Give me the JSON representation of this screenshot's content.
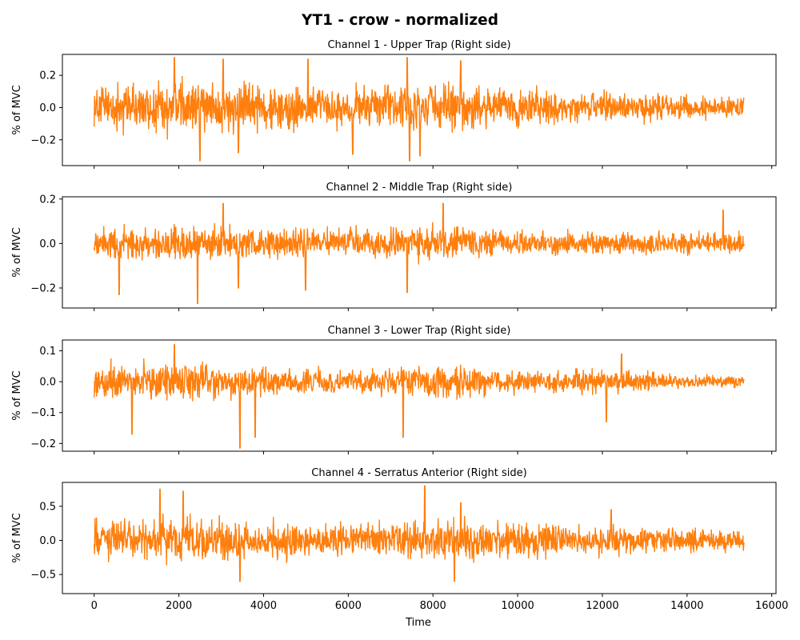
{
  "figure": {
    "suptitle": "YT1 - crow - normalized",
    "xlabel": "Time"
  },
  "colors": {
    "signal": "#ff7f0e"
  },
  "chart_data": [
    {
      "type": "line",
      "title": "Channel 1 - Upper Trap (Right side)",
      "ylabel": "% of MVC",
      "xlim": [
        -750,
        16100
      ],
      "ylim": [
        -0.36,
        0.33
      ],
      "x_ticks": [
        0,
        2000,
        4000,
        6000,
        8000,
        10000,
        12000,
        14000,
        16000
      ],
      "y_ticks": [
        -0.2,
        0.0,
        0.2
      ],
      "y_tick_labels": [
        "−0.2",
        "0.0",
        "0.2"
      ],
      "show_x_tick_labels": false,
      "x_range": [
        0,
        15350
      ],
      "envelope": {
        "x": [
          0,
          2000,
          4000,
          6000,
          8000,
          10000,
          12000,
          14000,
          15350
        ],
        "amplitude": [
          0.17,
          0.22,
          0.19,
          0.17,
          0.19,
          0.15,
          0.13,
          0.09,
          0.08
        ]
      },
      "spikes": [
        [
          1900,
          0.31
        ],
        [
          2500,
          -0.33
        ],
        [
          3050,
          0.3
        ],
        [
          3400,
          -0.28
        ],
        [
          5050,
          0.3
        ],
        [
          6100,
          -0.29
        ],
        [
          7400,
          0.31
        ],
        [
          7450,
          -0.33
        ],
        [
          7700,
          -0.3
        ],
        [
          8650,
          0.29
        ],
        [
          15350,
          0.06
        ]
      ]
    },
    {
      "type": "line",
      "title": "Channel 2 - Middle Trap (Right side)",
      "ylabel": "% of MVC",
      "xlim": [
        -750,
        16100
      ],
      "ylim": [
        -0.29,
        0.21
      ],
      "x_ticks": [
        0,
        2000,
        4000,
        6000,
        8000,
        10000,
        12000,
        14000,
        16000
      ],
      "y_ticks": [
        -0.2,
        0.0,
        0.2
      ],
      "y_tick_labels": [
        "−0.2",
        "0.0",
        "0.2"
      ],
      "show_x_tick_labels": false,
      "x_range": [
        0,
        15350
      ],
      "envelope": {
        "x": [
          0,
          2000,
          4000,
          6000,
          8000,
          10000,
          12000,
          14000,
          15350
        ],
        "amplitude": [
          0.09,
          0.1,
          0.09,
          0.08,
          0.1,
          0.07,
          0.07,
          0.06,
          0.06
        ]
      },
      "spikes": [
        [
          600,
          -0.23
        ],
        [
          2450,
          -0.27
        ],
        [
          3050,
          0.18
        ],
        [
          3400,
          -0.2
        ],
        [
          5000,
          -0.21
        ],
        [
          7400,
          -0.22
        ],
        [
          8250,
          0.18
        ],
        [
          14850,
          0.15
        ]
      ]
    },
    {
      "type": "line",
      "title": "Channel 3 - Lower Trap (Right side)",
      "ylabel": "% of MVC",
      "xlim": [
        -750,
        16100
      ],
      "ylim": [
        -0.225,
        0.135
      ],
      "x_ticks": [
        0,
        2000,
        4000,
        6000,
        8000,
        10000,
        12000,
        14000,
        16000
      ],
      "y_ticks": [
        -0.2,
        -0.1,
        0.0,
        0.1
      ],
      "y_tick_labels": [
        "−0.2",
        "−0.1",
        "0.0",
        "0.1"
      ],
      "show_x_tick_labels": false,
      "x_range": [
        0,
        15350
      ],
      "envelope": {
        "x": [
          0,
          2000,
          4000,
          6000,
          8000,
          10000,
          12000,
          14000,
          15350
        ],
        "amplitude": [
          0.08,
          0.08,
          0.06,
          0.05,
          0.07,
          0.05,
          0.05,
          0.03,
          0.03
        ]
      },
      "spikes": [
        [
          900,
          -0.17
        ],
        [
          1900,
          0.12
        ],
        [
          3450,
          -0.215
        ],
        [
          3800,
          -0.18
        ],
        [
          7300,
          -0.18
        ],
        [
          12100,
          -0.13
        ],
        [
          12450,
          0.09
        ]
      ]
    },
    {
      "type": "line",
      "title": "Channel 4 - Serratus Anterior (Right side)",
      "ylabel": "% of MVC",
      "xlim": [
        -750,
        16100
      ],
      "ylim": [
        -0.78,
        0.85
      ],
      "x_ticks": [
        0,
        2000,
        4000,
        6000,
        8000,
        10000,
        12000,
        14000,
        16000
      ],
      "x_tick_labels": [
        "0",
        "2000",
        "4000",
        "6000",
        "8000",
        "10000",
        "12000",
        "14000",
        "16000"
      ],
      "y_ticks": [
        -0.5,
        0.0,
        0.5
      ],
      "y_tick_labels": [
        "−0.5",
        "0.0",
        "0.5"
      ],
      "show_x_tick_labels": true,
      "x_range": [
        0,
        15350
      ],
      "envelope": {
        "x": [
          0,
          2000,
          4000,
          6000,
          8000,
          10000,
          12000,
          14000,
          15350
        ],
        "amplitude": [
          0.35,
          0.45,
          0.35,
          0.3,
          0.4,
          0.32,
          0.28,
          0.22,
          0.2
        ]
      },
      "spikes": [
        [
          1550,
          0.75
        ],
        [
          2100,
          0.72
        ],
        [
          3450,
          -0.6
        ],
        [
          7800,
          0.8
        ],
        [
          7800,
          -0.72
        ],
        [
          8500,
          -0.6
        ],
        [
          8650,
          0.55
        ],
        [
          12200,
          0.45
        ]
      ]
    }
  ]
}
